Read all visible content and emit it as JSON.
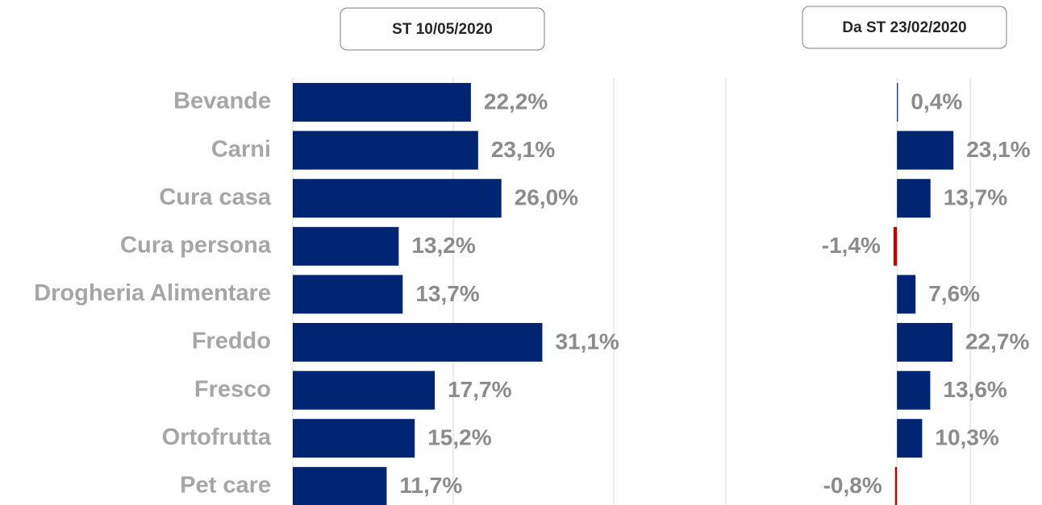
{
  "chart_data": [
    {
      "type": "barh",
      "title": "ST 10/05/2020",
      "categories": [
        "Bevande",
        "Carni",
        "Cura casa",
        "Cura persona",
        "Drogheria Alimentare",
        "Freddo",
        "Fresco",
        "Ortofrutta",
        "Pet care"
      ],
      "values": [
        22.2,
        23.1,
        26.0,
        13.2,
        13.7,
        31.1,
        17.7,
        15.2,
        11.7
      ],
      "value_labels": [
        "22,2%",
        "23,1%",
        "26,0%",
        "13,2%",
        "13,7%",
        "31,1%",
        "17,7%",
        "15,2%",
        "11,7%"
      ],
      "color": "#002673",
      "negative_color": "#c00000",
      "xlim": [
        0,
        50
      ],
      "xticks": [
        0,
        20,
        40
      ],
      "grid": true
    },
    {
      "type": "barh",
      "title": "Da ST 23/02/2020",
      "values": [
        0.4,
        23.1,
        13.7,
        -1.4,
        7.6,
        22.7,
        13.6,
        10.3,
        -0.8
      ],
      "value_labels": [
        "0,4%",
        "23,1%",
        "13,7%",
        "-1,4%",
        "7,6%",
        "22,7%",
        "13,6%",
        "10,3%",
        "-0,8%"
      ],
      "color": "#002673",
      "negative_color": "#c00000",
      "xlim": [
        -70,
        58
      ],
      "xticks": [
        -70,
        0,
        30
      ],
      "grid": true
    }
  ]
}
